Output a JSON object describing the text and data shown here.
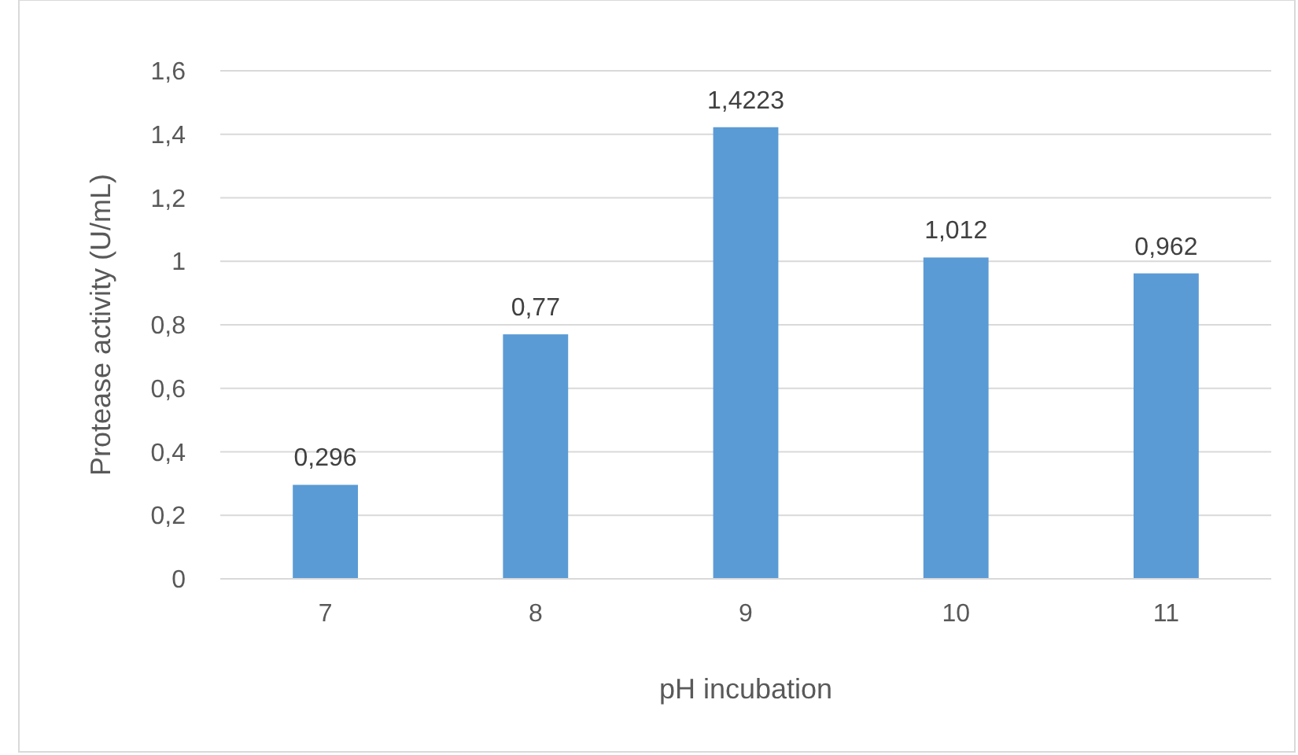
{
  "chart_data": {
    "type": "bar",
    "xlabel": "pH incubation",
    "ylabel": "Protease activity (U/mL)",
    "categories": [
      "7",
      "8",
      "9",
      "10",
      "11"
    ],
    "values": [
      0.296,
      0.77,
      1.4223,
      1.012,
      0.962
    ],
    "value_labels": [
      "0,296",
      "0,77",
      "1,4223",
      "1,012",
      "0,962"
    ],
    "color": "#5b9bd5",
    "ylim": [
      0,
      1.6
    ],
    "yticks": [
      0,
      {
        "value": 0.2,
        "label": "0,2"
      },
      {
        "value": 0.4,
        "label": "0,4"
      },
      {
        "value": 0.6,
        "label": "0,6"
      },
      {
        "value": 0.8,
        "label": "0,8"
      },
      1,
      {
        "value": 1.2,
        "label": "1,2"
      },
      {
        "value": 1.4,
        "label": "1,4"
      },
      {
        "value": 1.6,
        "label": "1,6"
      }
    ],
    "grid": "y"
  }
}
